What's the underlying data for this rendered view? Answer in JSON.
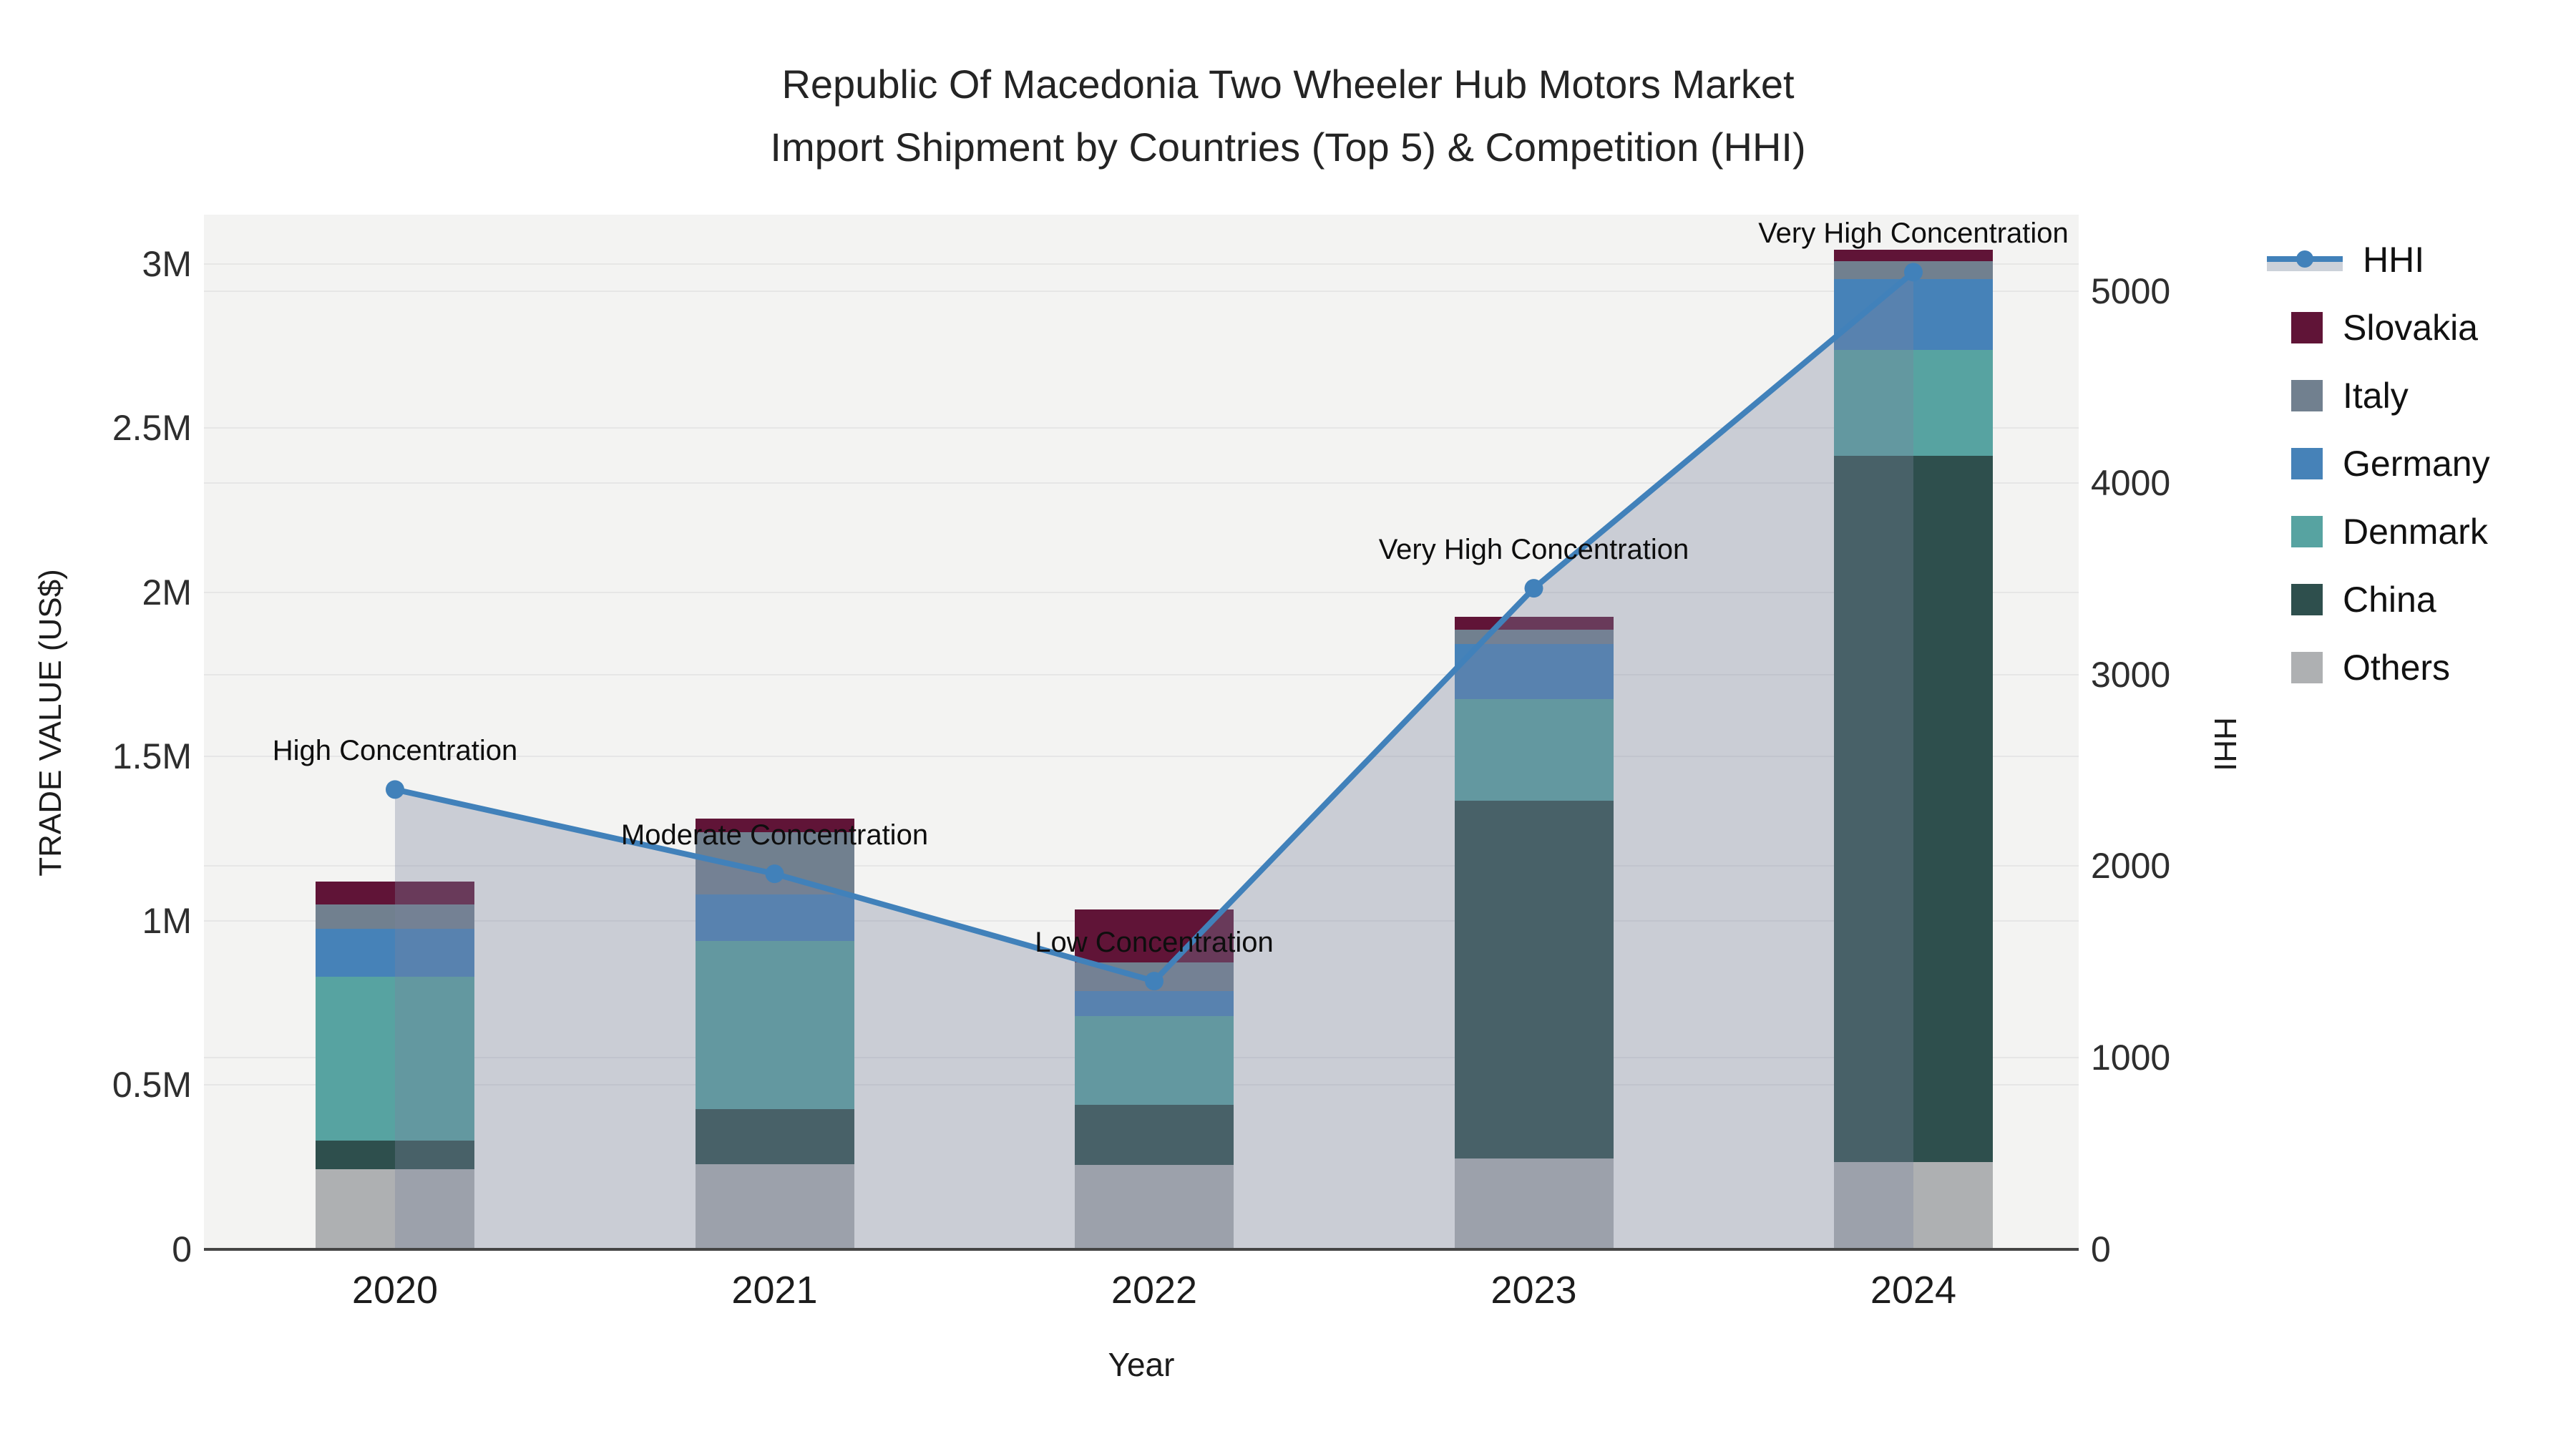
{
  "title": {
    "line1": "Republic Of Macedonia Two Wheeler Hub Motors Market",
    "line2": "Import Shipment by Countries (Top 5) & Competition (HHI)"
  },
  "axes": {
    "y_left": {
      "title": "TRADE VALUE (US$)",
      "ticks": [
        {
          "label": "0",
          "value": 0
        },
        {
          "label": "0.5M",
          "value": 500000
        },
        {
          "label": "1M",
          "value": 1000000
        },
        {
          "label": "1.5M",
          "value": 1500000
        },
        {
          "label": "2M",
          "value": 2000000
        },
        {
          "label": "2.5M",
          "value": 2500000
        },
        {
          "label": "3M",
          "value": 3000000
        }
      ]
    },
    "y_right": {
      "title": "HHI",
      "ticks": [
        {
          "label": "0",
          "value": 0
        },
        {
          "label": "1000",
          "value": 1000
        },
        {
          "label": "2000",
          "value": 2000
        },
        {
          "label": "3000",
          "value": 3000
        },
        {
          "label": "4000",
          "value": 4000
        },
        {
          "label": "5000",
          "value": 5000
        }
      ]
    },
    "x": {
      "title": "Year"
    }
  },
  "legend": [
    {
      "label": "HHI",
      "type": "line",
      "color": "#4181ba"
    },
    {
      "label": "Slovakia",
      "type": "square",
      "color": "#601437"
    },
    {
      "label": "Italy",
      "type": "square",
      "color": "#71808f"
    },
    {
      "label": "Germany",
      "type": "square",
      "color": "#4682b8"
    },
    {
      "label": "Denmark",
      "type": "square",
      "color": "#57a3a1"
    },
    {
      "label": "China",
      "type": "square",
      "color": "#2e4f4d"
    },
    {
      "label": "Others",
      "type": "square",
      "color": "#aeb0b2"
    }
  ],
  "chart_data": {
    "type": "bar+line",
    "title": "Republic Of Macedonia Two Wheeler Hub Motors Market Import Shipment by Countries (Top 5) & Competition (HHI)",
    "xlabel": "Year",
    "ylabel_left": "TRADE VALUE (US$)",
    "ylabel_right": "HHI",
    "categories": [
      "2020",
      "2021",
      "2022",
      "2023",
      "2024"
    ],
    "stack_order_bottom_to_top": [
      "Others",
      "China",
      "Denmark",
      "Germany",
      "Italy",
      "Slovakia"
    ],
    "series": [
      {
        "name": "Others",
        "color": "#aeb0b2",
        "values": [
          245000,
          259000,
          258000,
          276000,
          265000
        ]
      },
      {
        "name": "China",
        "color": "#2e4f4d",
        "values": [
          86000,
          168000,
          183000,
          1090000,
          2150000
        ]
      },
      {
        "name": "Denmark",
        "color": "#57a3a1",
        "values": [
          500000,
          512000,
          270000,
          310000,
          323000
        ]
      },
      {
        "name": "Germany",
        "color": "#4682b8",
        "values": [
          146000,
          141000,
          76000,
          166000,
          217000
        ]
      },
      {
        "name": "Italy",
        "color": "#71808f",
        "values": [
          72000,
          189000,
          87000,
          45000,
          54000
        ]
      },
      {
        "name": "Slovakia",
        "color": "#601437",
        "values": [
          71000,
          42000,
          160000,
          38000,
          35000
        ]
      }
    ],
    "bar_totals": [
      1120000,
      1311000,
      1034000,
      1925000,
      3044000
    ],
    "line_series": {
      "name": "HHI",
      "color": "#4181ba",
      "area_fill": "rgba(122,132,158,0.34)",
      "values": [
        2400,
        1960,
        1400,
        3450,
        5100
      ]
    },
    "annotations": [
      {
        "x": "2020",
        "text": "High Concentration"
      },
      {
        "x": "2021",
        "text": "Moderate Concentration"
      },
      {
        "x": "2022",
        "text": "Low Concentration"
      },
      {
        "x": "2023",
        "text": "Very High Concentration"
      },
      {
        "x": "2024",
        "text": "Very High Concentration"
      }
    ],
    "ylim_left": [
      0,
      3150000
    ],
    "ylim_right": [
      0,
      5400
    ],
    "grid": "horizontal",
    "legend_position": "right"
  }
}
